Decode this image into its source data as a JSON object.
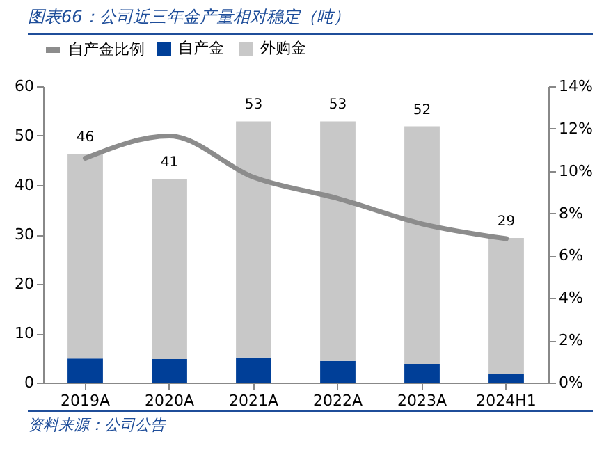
{
  "chart_data": {
    "type": "bar",
    "title": "图表66：公司近三年金产量相对稳定（吨）",
    "annotations": [
      "资料来源：公司公告"
    ],
    "categories": [
      "2019A",
      "2020A",
      "2021A",
      "2022A",
      "2023A",
      "2024H1"
    ],
    "stacked": true,
    "legend": "top",
    "grid": false,
    "series": [
      {
        "name": "自产金",
        "color": "#003f98",
        "values": [
          4.9,
          4.8,
          5.1,
          4.4,
          3.8,
          1.8
        ]
      },
      {
        "name": "外购金",
        "color": "#c8c8c8",
        "values": [
          41.4,
          36.4,
          47.8,
          48.5,
          48.1,
          27.5
        ]
      },
      {
        "name": "自产金比例",
        "color": "#8c8c8c",
        "type": "line",
        "axis": "y2",
        "values": [
          10.6,
          11.65,
          9.7,
          8.7,
          7.5,
          6.8
        ]
      }
    ],
    "totals": [
      "46",
      "41",
      "53",
      "53",
      "52",
      "29"
    ],
    "ylim": [
      0,
      60
    ],
    "yticks": [
      0,
      10,
      20,
      30,
      40,
      50,
      60
    ],
    "y2lim": [
      0,
      14
    ],
    "y2ticks": [
      {
        "value": 0,
        "label": "0%"
      },
      {
        "value": 2,
        "label": "2%"
      },
      {
        "value": 4,
        "label": "4%"
      },
      {
        "value": 6,
        "label": "6%"
      },
      {
        "value": 8,
        "label": "8%"
      },
      {
        "value": 10,
        "label": "10%"
      },
      {
        "value": 12,
        "label": "12%"
      },
      {
        "value": 14,
        "label": "14%"
      }
    ]
  }
}
